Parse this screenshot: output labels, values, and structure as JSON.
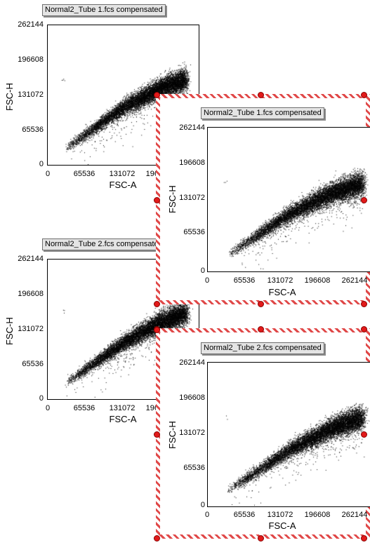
{
  "plots": [
    {
      "title": "Normal2_Tube 1.fcs compensated",
      "xlabel": "FSC-A",
      "ylabel": "FSC-H"
    },
    {
      "title": "Normal2_Tube 2.fcs compensated",
      "xlabel": "FSC-A",
      "ylabel": "FSC-H"
    },
    {
      "title": "Normal2_Tube 1.fcs compensated",
      "xlabel": "FSC-A",
      "ylabel": "FSC-H"
    },
    {
      "title": "Normal2_Tube 2.fcs compensated",
      "xlabel": "FSC-A",
      "ylabel": "FSC-H"
    }
  ],
  "ticks": {
    "x": [
      "0",
      "65536",
      "131072",
      "196608",
      "262144"
    ],
    "y": [
      "0",
      "65536",
      "131072",
      "196608",
      "262144"
    ]
  },
  "colors": {
    "handle": "#e21a1a",
    "frame": "#e04848",
    "points": "#000000"
  },
  "chart_data": [
    {
      "type": "scatter",
      "title": "Normal2_Tube 1.fcs compensated",
      "xlabel": "FSC-A",
      "ylabel": "FSC-H",
      "xlim": [
        0,
        262144
      ],
      "ylim": [
        0,
        262144
      ],
      "grid": false,
      "density_band": [
        [
          30000,
          30000
        ],
        [
          65536,
          58000
        ],
        [
          131072,
          108000
        ],
        [
          196608,
          145000
        ],
        [
          240000,
          160000
        ]
      ]
    },
    {
      "type": "scatter",
      "title": "Normal2_Tube 2.fcs compensated",
      "xlabel": "FSC-A",
      "ylabel": "FSC-H",
      "xlim": [
        0,
        262144
      ],
      "ylim": [
        0,
        262144
      ],
      "grid": false,
      "density_band": [
        [
          30000,
          30000
        ],
        [
          65536,
          56000
        ],
        [
          131072,
          106000
        ],
        [
          196608,
          145000
        ],
        [
          240000,
          162000
        ]
      ]
    }
  ]
}
